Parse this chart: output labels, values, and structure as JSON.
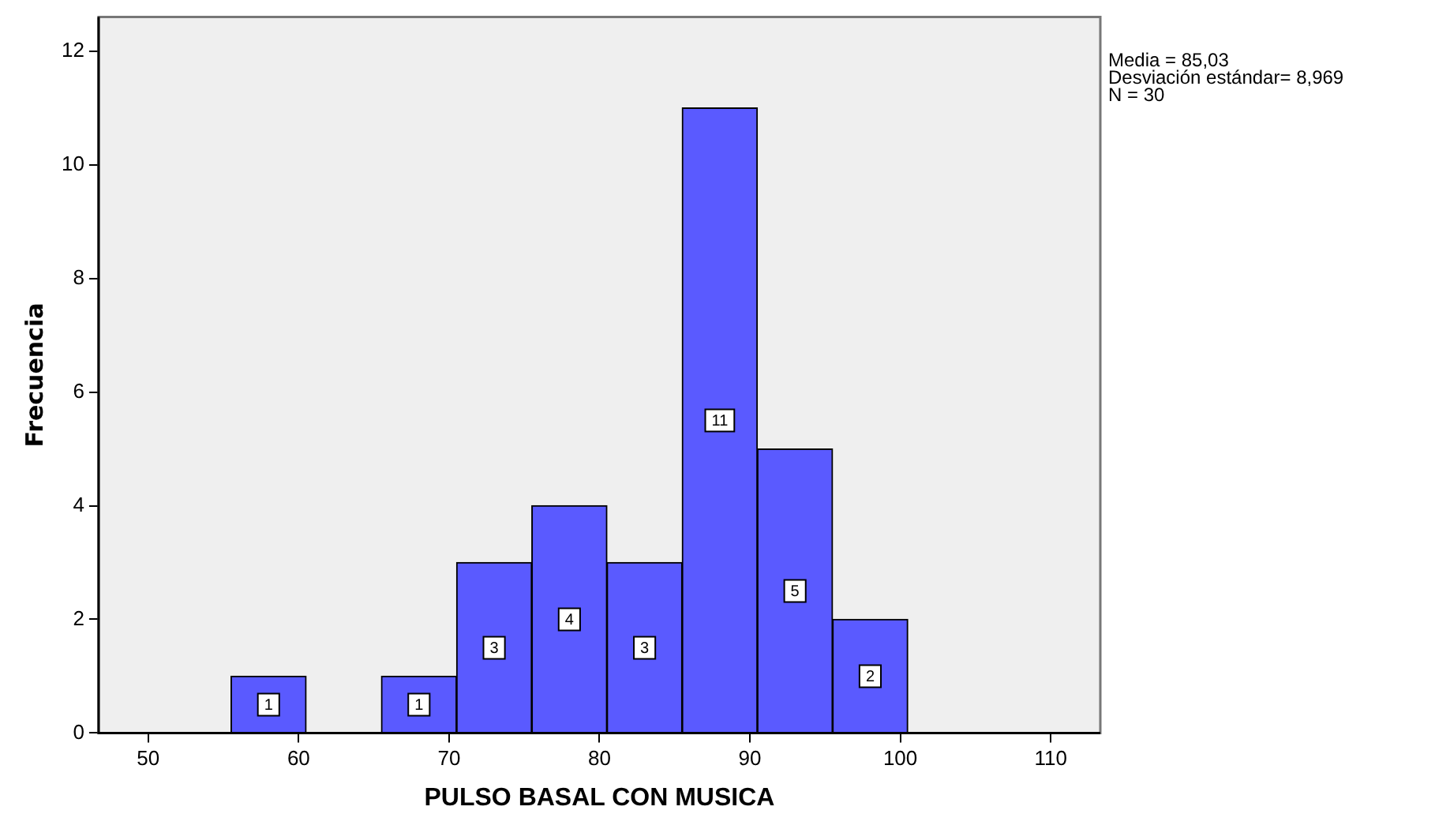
{
  "chart_data": {
    "type": "histogram",
    "xlabel": "PULSO BASAL CON MUSICA",
    "ylabel": "Frecuencia",
    "bins": [
      55.5,
      60.5,
      65.5,
      70.5,
      75.5,
      80.5,
      85.5,
      90.5,
      95.5,
      100.5
    ],
    "values": [
      1,
      0,
      1,
      3,
      4,
      3,
      11,
      5,
      2
    ],
    "color": "#5a5aff",
    "xlim": [
      46.7,
      113.3
    ],
    "xticks": [
      50,
      60,
      70,
      80,
      90,
      100,
      110
    ],
    "ylim": [
      0,
      12.6
    ],
    "yticks": [
      0,
      2,
      4,
      6,
      8,
      10,
      12
    ],
    "value_labels": [
      "1",
      null,
      "1",
      "3",
      "4",
      "3",
      "11",
      "5",
      "2"
    ],
    "grid": false,
    "legend": false,
    "annotations": [
      "Media = 85,03",
      "Desviación estándar= 8,969",
      "N = 30"
    ]
  }
}
